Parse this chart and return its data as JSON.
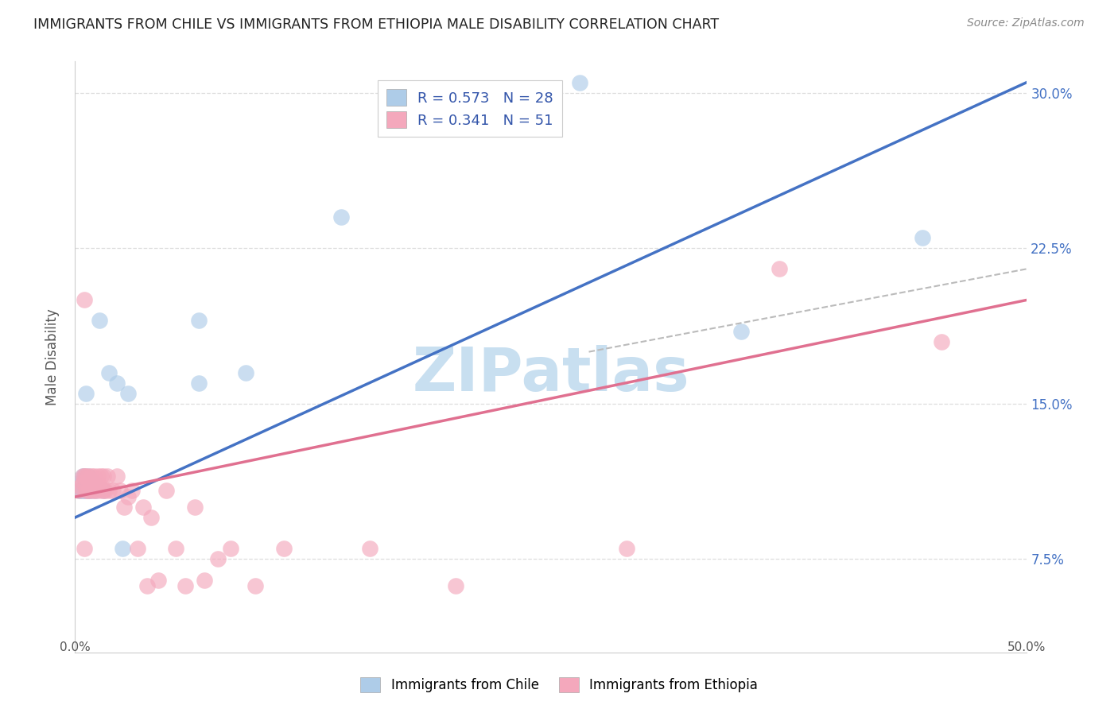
{
  "title": "IMMIGRANTS FROM CHILE VS IMMIGRANTS FROM ETHIOPIA MALE DISABILITY CORRELATION CHART",
  "source": "Source: ZipAtlas.com",
  "ylabel": "Male Disability",
  "xlim": [
    0.0,
    0.5
  ],
  "ylim": [
    0.03,
    0.315
  ],
  "xtick_left_label": "0.0%",
  "xtick_right_label": "50.0%",
  "yticks": [
    0.075,
    0.15,
    0.225,
    0.3
  ],
  "yticklabels": [
    "7.5%",
    "15.0%",
    "22.5%",
    "30.0%"
  ],
  "chile_R": 0.573,
  "chile_N": 28,
  "ethiopia_R": 0.341,
  "ethiopia_N": 51,
  "chile_color": "#aecce8",
  "ethiopia_color": "#f4a8bc",
  "chile_line_color": "#4472c4",
  "ethiopia_line_color": "#e07090",
  "watermark_text": "ZIPatlas",
  "watermark_color": "#c8dff0",
  "legend_label_chile": "Immigrants from Chile",
  "legend_label_ethiopia": "Immigrants from Ethiopia",
  "chile_line_start_y": 0.095,
  "chile_line_end_y": 0.305,
  "ethiopia_line_start_y": 0.105,
  "ethiopia_line_end_y": 0.2,
  "dashed_line_start_x": 0.27,
  "dashed_line_start_y": 0.175,
  "dashed_line_end_x": 0.5,
  "dashed_line_end_y": 0.215,
  "chile_x": [
    0.002,
    0.003,
    0.003,
    0.004,
    0.004,
    0.005,
    0.005,
    0.006,
    0.006,
    0.007,
    0.007,
    0.008,
    0.009,
    0.01,
    0.011,
    0.013,
    0.015,
    0.018,
    0.022,
    0.025,
    0.028,
    0.065,
    0.065,
    0.09,
    0.14,
    0.265,
    0.35,
    0.445
  ],
  "chile_y": [
    0.108,
    0.108,
    0.112,
    0.108,
    0.115,
    0.108,
    0.115,
    0.108,
    0.155,
    0.108,
    0.115,
    0.108,
    0.108,
    0.112,
    0.108,
    0.19,
    0.108,
    0.165,
    0.16,
    0.08,
    0.155,
    0.16,
    0.19,
    0.165,
    0.24,
    0.305,
    0.185,
    0.23
  ],
  "ethiopia_x": [
    0.002,
    0.003,
    0.004,
    0.004,
    0.005,
    0.005,
    0.006,
    0.006,
    0.007,
    0.007,
    0.008,
    0.009,
    0.009,
    0.01,
    0.01,
    0.011,
    0.012,
    0.012,
    0.013,
    0.014,
    0.015,
    0.015,
    0.016,
    0.017,
    0.018,
    0.02,
    0.022,
    0.024,
    0.026,
    0.028,
    0.03,
    0.033,
    0.036,
    0.038,
    0.04,
    0.044,
    0.048,
    0.053,
    0.058,
    0.063,
    0.068,
    0.075,
    0.082,
    0.095,
    0.11,
    0.155,
    0.2,
    0.29,
    0.37,
    0.455,
    0.005
  ],
  "ethiopia_y": [
    0.108,
    0.11,
    0.112,
    0.115,
    0.2,
    0.115,
    0.108,
    0.115,
    0.108,
    0.115,
    0.108,
    0.112,
    0.115,
    0.108,
    0.115,
    0.108,
    0.112,
    0.115,
    0.108,
    0.115,
    0.108,
    0.115,
    0.108,
    0.115,
    0.108,
    0.108,
    0.115,
    0.108,
    0.1,
    0.105,
    0.108,
    0.08,
    0.1,
    0.062,
    0.095,
    0.065,
    0.108,
    0.08,
    0.062,
    0.1,
    0.065,
    0.075,
    0.08,
    0.062,
    0.08,
    0.08,
    0.062,
    0.08,
    0.215,
    0.18,
    0.08
  ]
}
